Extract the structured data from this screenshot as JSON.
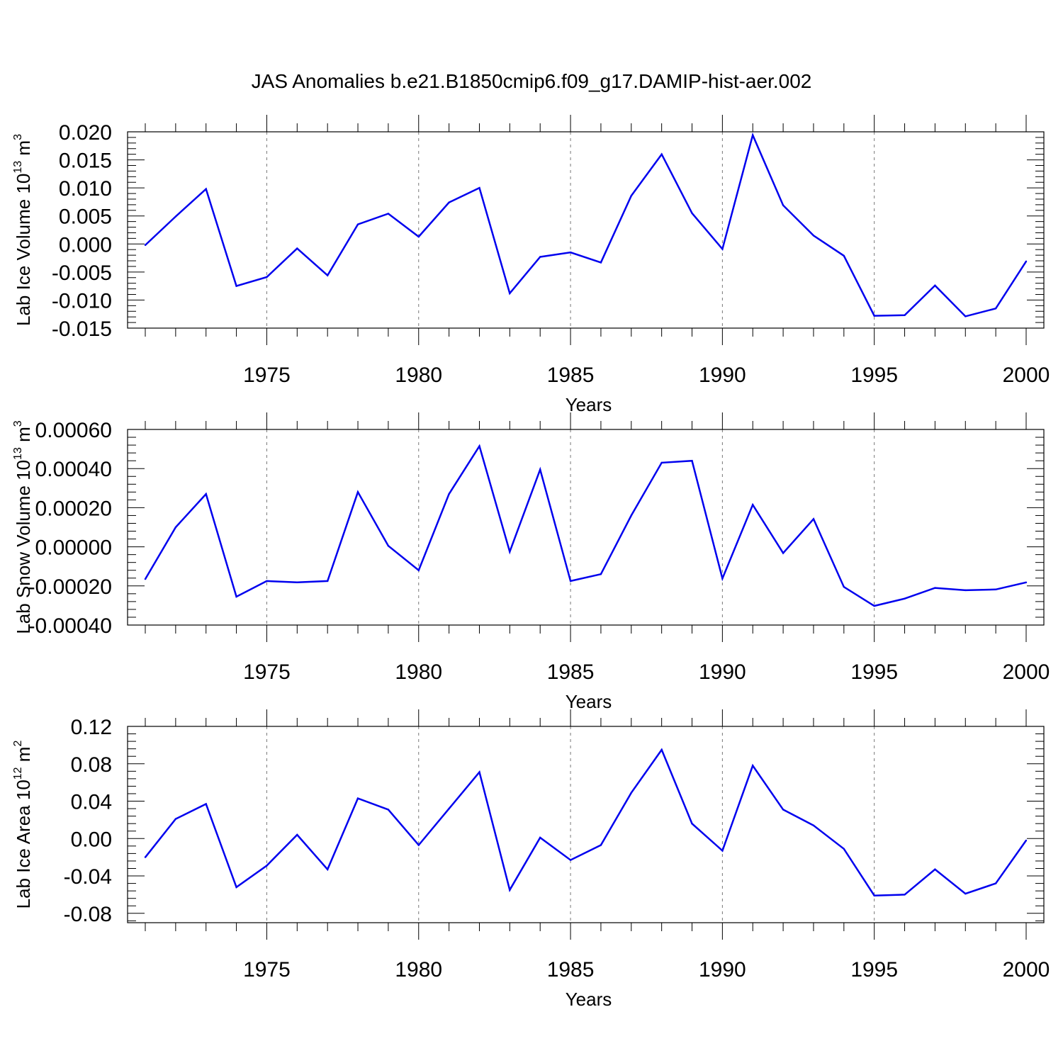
{
  "title": "JAS Anomalies b.e21.B1850cmip6.f09_g17.DAMIP-hist-aer.002",
  "line_color": "#0000ee",
  "chart_data": [
    {
      "type": "line",
      "ylabel": "Lab Ice Volume",
      "ylabel_unit_base": "10",
      "ylabel_unit_exp": "13",
      "ylabel_unit": "m",
      "ylabel_unit_pow": "3",
      "xlabel": "Years",
      "xlim": [
        1971,
        2000
      ],
      "ylim": [
        -0.015,
        0.02
      ],
      "yticks": [
        -0.015,
        -0.01,
        -0.005,
        0.0,
        0.005,
        0.01,
        0.015,
        0.02
      ],
      "ytick_labels": [
        "-0.015",
        "-0.010",
        "-0.005",
        "0.000",
        "0.005",
        "0.010",
        "0.015",
        "0.020"
      ],
      "xticks": [
        1975,
        1980,
        1985,
        1990,
        1995,
        2000
      ],
      "xtick_labels": [
        "1975",
        "1980",
        "1985",
        "1990",
        "1995",
        "2000"
      ],
      "x": [
        1971,
        1972,
        1973,
        1974,
        1975,
        1976,
        1977,
        1978,
        1979,
        1980,
        1981,
        1982,
        1983,
        1984,
        1985,
        1986,
        1987,
        1988,
        1989,
        1990,
        1991,
        1992,
        1993,
        1994,
        1995,
        1996,
        1997,
        1998,
        1999,
        2000
      ],
      "values": [
        -0.0002,
        0.0049,
        0.0098,
        -0.0075,
        -0.0059,
        -0.0008,
        -0.0056,
        0.0035,
        0.0054,
        0.0013,
        0.0074,
        0.01,
        -0.0088,
        -0.0023,
        -0.0015,
        -0.0033,
        0.0086,
        0.016,
        0.0055,
        -0.0009,
        0.0194,
        0.0069,
        0.0015,
        -0.0021,
        -0.0128,
        -0.0127,
        -0.0074,
        -0.0129,
        -0.0115,
        -0.0031
      ]
    },
    {
      "type": "line",
      "ylabel": "Lab Snow Volume",
      "ylabel_unit_base": "10",
      "ylabel_unit_exp": "13",
      "ylabel_unit": "m",
      "ylabel_unit_pow": "3",
      "xlabel": "Years",
      "xlim": [
        1971,
        2000
      ],
      "ylim": [
        -0.0004,
        0.0006
      ],
      "yticks": [
        -0.0004,
        -0.0002,
        0.0,
        0.0002,
        0.0004,
        0.0006
      ],
      "ytick_labels": [
        "-0.00040",
        "-0.00020",
        "0.00000",
        "0.00020",
        "0.00040",
        "0.00060"
      ],
      "xticks": [
        1975,
        1980,
        1985,
        1990,
        1995,
        2000
      ],
      "xtick_labels": [
        "1975",
        "1980",
        "1985",
        "1990",
        "1995",
        "2000"
      ],
      "x": [
        1971,
        1972,
        1973,
        1974,
        1975,
        1976,
        1977,
        1978,
        1979,
        1980,
        1981,
        1982,
        1983,
        1984,
        1985,
        1986,
        1987,
        1988,
        1989,
        1990,
        1991,
        1992,
        1993,
        1994,
        1995,
        1996,
        1997,
        1998,
        1999,
        2000
      ],
      "values": [
        -0.000165,
        0.0001,
        0.00027,
        -0.000255,
        -0.000175,
        -0.000182,
        -0.000175,
        0.00028,
        5e-06,
        -0.00012,
        0.00027,
        0.000515,
        -2.5e-05,
        0.000395,
        -0.000175,
        -0.00014,
        0.00016,
        0.00043,
        0.00044,
        -0.000162,
        0.000215,
        -3.2e-05,
        0.000142,
        -0.000205,
        -0.000302,
        -0.000265,
        -0.00021,
        -0.000222,
        -0.000218,
        -0.000182
      ]
    },
    {
      "type": "line",
      "ylabel": "Lab Ice Area",
      "ylabel_unit_base": "10",
      "ylabel_unit_exp": "12",
      "ylabel_unit": "m",
      "ylabel_unit_pow": "2",
      "xlabel": "Years",
      "xlim": [
        1971,
        2000
      ],
      "ylim": [
        -0.09,
        0.12
      ],
      "yticks": [
        -0.08,
        -0.04,
        0.0,
        0.04,
        0.08,
        0.12
      ],
      "ytick_labels": [
        "-0.08",
        "-0.04",
        "0.00",
        "0.04",
        "0.08",
        "0.12"
      ],
      "xticks": [
        1975,
        1980,
        1985,
        1990,
        1995,
        2000
      ],
      "xtick_labels": [
        "1975",
        "1980",
        "1985",
        "1990",
        "1995",
        "2000"
      ],
      "x": [
        1971,
        1972,
        1973,
        1974,
        1975,
        1976,
        1977,
        1978,
        1979,
        1980,
        1981,
        1982,
        1983,
        1984,
        1985,
        1986,
        1987,
        1988,
        1989,
        1990,
        1991,
        1992,
        1993,
        1994,
        1995,
        1996,
        1997,
        1998,
        1999,
        2000
      ],
      "values": [
        -0.02,
        0.021,
        0.037,
        -0.052,
        -0.029,
        0.004,
        -0.033,
        0.043,
        0.031,
        -0.007,
        0.032,
        0.071,
        -0.055,
        0.001,
        -0.023,
        -0.007,
        0.049,
        0.095,
        0.016,
        -0.013,
        0.078,
        0.031,
        0.014,
        -0.011,
        -0.061,
        -0.06,
        -0.033,
        -0.059,
        -0.048,
        -0.002
      ]
    }
  ]
}
